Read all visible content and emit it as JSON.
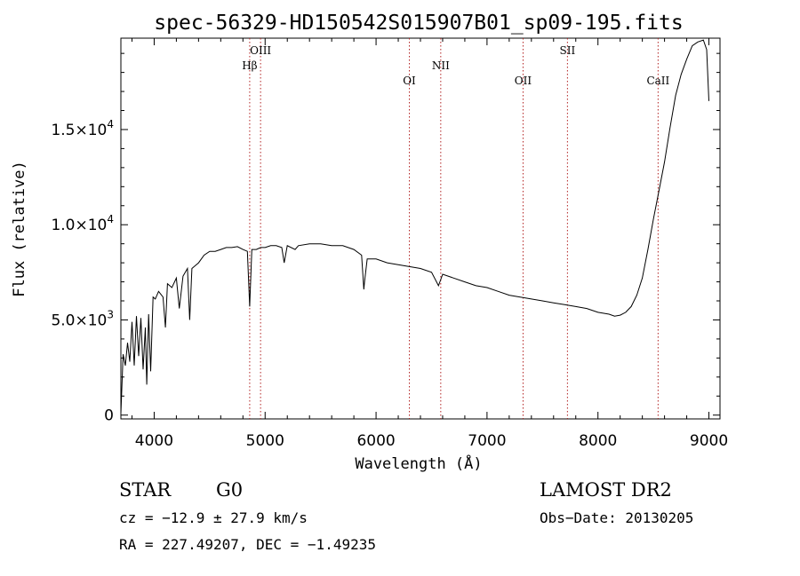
{
  "chart_data": {
    "type": "line",
    "title": "spec-56329-HD150542S015907B01_sp09-195.fits",
    "xlabel": "Wavelength (Å)",
    "ylabel": "Flux (relative)",
    "xlim": [
      3700,
      9100
    ],
    "ylim": [
      -200,
      19800
    ],
    "xticks": [
      {
        "value": 4000,
        "label": "4000"
      },
      {
        "value": 5000,
        "label": "5000"
      },
      {
        "value": 6000,
        "label": "6000"
      },
      {
        "value": 7000,
        "label": "7000"
      },
      {
        "value": 8000,
        "label": "8000"
      },
      {
        "value": 9000,
        "label": "9000"
      }
    ],
    "yticks": [
      {
        "value": 0,
        "mantissa": "0",
        "exp": ""
      },
      {
        "value": 5000,
        "mantissa": "5.0×10",
        "exp": "3"
      },
      {
        "value": 10000,
        "mantissa": "1.0×10",
        "exp": "4"
      },
      {
        "value": 15000,
        "mantissa": "1.5×10",
        "exp": "4"
      }
    ],
    "lines": [
      {
        "label": "Hβ",
        "wavelength": 4861,
        "row": 1
      },
      {
        "label": "OIII",
        "wavelength": 4959,
        "row": 0
      },
      {
        "label": "OI",
        "wavelength": 6300,
        "row": 2
      },
      {
        "label": "NII",
        "wavelength": 6583,
        "row": 1
      },
      {
        "label": "OII",
        "wavelength": 7325,
        "row": 2
      },
      {
        "label": "SII",
        "wavelength": 7725,
        "row": 0
      },
      {
        "label": "CaII",
        "wavelength": 8542,
        "row": 2
      }
    ],
    "series": [
      {
        "x": [
          3700,
          3720,
          3740,
          3760,
          3780,
          3800,
          3820,
          3840,
          3860,
          3880,
          3900,
          3920,
          3933,
          3950,
          3968,
          3990,
          4010,
          4040,
          4080,
          4101,
          4120,
          4160,
          4200,
          4226,
          4260,
          4300,
          4320,
          4340,
          4360,
          4400,
          4450,
          4500,
          4550,
          4600,
          4650,
          4700,
          4750,
          4800,
          4840,
          4861,
          4880,
          4920,
          4960,
          5000,
          5050,
          5100,
          5150,
          5172,
          5200,
          5270,
          5300,
          5400,
          5500,
          5600,
          5700,
          5800,
          5870,
          5890,
          5896,
          5920,
          6000,
          6100,
          6200,
          6300,
          6400,
          6500,
          6563,
          6600,
          6700,
          6800,
          6900,
          7000,
          7100,
          7200,
          7300,
          7400,
          7500,
          7600,
          7700,
          7800,
          7900,
          8000,
          8100,
          8150,
          8200,
          8250,
          8300,
          8350,
          8400,
          8450,
          8500,
          8550,
          8600,
          8650,
          8700,
          8750,
          8800,
          8850,
          8900,
          8950,
          8980,
          9000
        ],
        "y": [
          100,
          3200,
          2600,
          3800,
          2800,
          4900,
          2600,
          5200,
          3100,
          5100,
          2400,
          4600,
          1600,
          5300,
          2300,
          6200,
          6100,
          6500,
          6200,
          4600,
          6900,
          6700,
          7200,
          5600,
          7300,
          7700,
          5000,
          7700,
          7800,
          8000,
          8400,
          8600,
          8600,
          8700,
          8800,
          8800,
          8850,
          8700,
          8600,
          5700,
          8700,
          8700,
          8800,
          8800,
          8900,
          8900,
          8800,
          8000,
          8900,
          8700,
          8900,
          9000,
          9000,
          8900,
          8900,
          8700,
          8400,
          6600,
          7000,
          8200,
          8200,
          8000,
          7900,
          7800,
          7700,
          7500,
          6800,
          7400,
          7200,
          7000,
          6800,
          6700,
          6500,
          6300,
          6200,
          6100,
          6000,
          5900,
          5800,
          5700,
          5600,
          5400,
          5300,
          5200,
          5250,
          5400,
          5700,
          6300,
          7200,
          8700,
          10300,
          11800,
          13300,
          15100,
          16800,
          17900,
          18700,
          19400,
          19600,
          19700,
          19200,
          16500
        ]
      }
    ]
  },
  "info": {
    "obj_class": "STAR",
    "subclass": "G0",
    "survey": "LAMOST DR2",
    "cz": "cz = −12.9 ± 27.9 km/s",
    "obs_date": "Obs−Date: 20130205",
    "radec": "RA = 227.49207, DEC =  −1.49235"
  }
}
